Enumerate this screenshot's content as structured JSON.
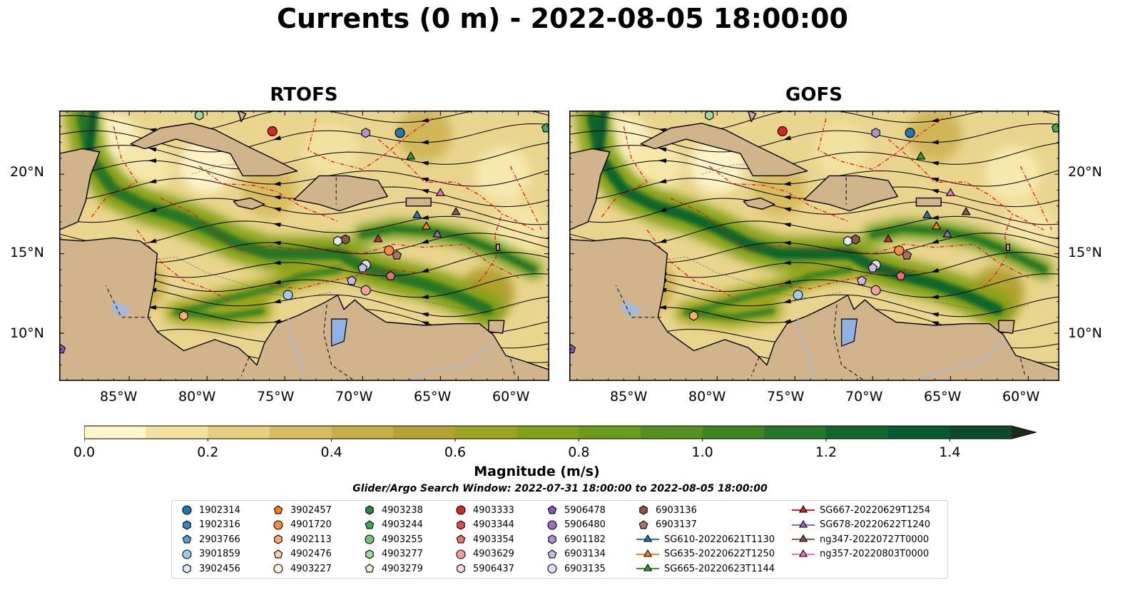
{
  "title": "Currents (0 m) - 2022-08-05 18:00:00",
  "panels": [
    {
      "name": "RTOFS"
    },
    {
      "name": "GOFS"
    }
  ],
  "lat_ticks": [
    "20°N",
    "15°N",
    "10°N"
  ],
  "lon_ticks": [
    "85°W",
    "80°W",
    "75°W",
    "70°W",
    "65°W",
    "60°W"
  ],
  "map_extent": {
    "lon": [
      -89.5,
      -58
    ],
    "lat": [
      7,
      24
    ]
  },
  "colorbar": {
    "label": "Magnitude (m/s)",
    "ticks": [
      "0.0",
      "0.2",
      "0.4",
      "0.6",
      "0.8",
      "1.0",
      "1.2",
      "1.4"
    ],
    "range": [
      0,
      1.5
    ],
    "extend": "max",
    "colors": [
      "#fdf6c9",
      "#f2e2a0",
      "#e6cf7f",
      "#d8bd60",
      "#c9ad47",
      "#b4a232",
      "#9ba51f",
      "#84a016",
      "#6c9a1a",
      "#55911f",
      "#3d8423",
      "#257627",
      "#11662c",
      "#0a5a30",
      "#0b4b2b",
      "#163a25",
      "#1a2b1c"
    ]
  },
  "search_window": "Glider/Argo Search Window: 2022-07-31 18:00:00 to 2022-08-05 18:00:00",
  "legend": [
    {
      "label": "1902314",
      "marker": "circle",
      "color": "#1f77b4"
    },
    {
      "label": "1902316",
      "marker": "hexagon",
      "color": "#3a87c4"
    },
    {
      "label": "2903766",
      "marker": "pentagon",
      "color": "#5aa0d8"
    },
    {
      "label": "3901859",
      "marker": "circle",
      "color": "#9ccbec"
    },
    {
      "label": "3902456",
      "marker": "hexagon",
      "color": "#dcebf8"
    },
    {
      "label": "3902457",
      "marker": "pentagon",
      "color": "#ff7f0e"
    },
    {
      "label": "4901720",
      "marker": "circle",
      "color": "#fd8d3c"
    },
    {
      "label": "4902113",
      "marker": "hexagon",
      "color": "#fdae6b"
    },
    {
      "label": "4902476",
      "marker": "pentagon",
      "color": "#fdd0a2"
    },
    {
      "label": "4903227",
      "marker": "circle",
      "color": "#feeedb"
    },
    {
      "label": "4903238",
      "marker": "hexagon",
      "color": "#238b45"
    },
    {
      "label": "4903244",
      "marker": "pentagon",
      "color": "#41ab5d"
    },
    {
      "label": "4903255",
      "marker": "circle",
      "color": "#74c476"
    },
    {
      "label": "4903277",
      "marker": "hexagon",
      "color": "#a1d99b"
    },
    {
      "label": "4903279",
      "marker": "pentagon",
      "color": "#dff3d9"
    },
    {
      "label": "4903333",
      "marker": "circle",
      "color": "#d62728"
    },
    {
      "label": "4903344",
      "marker": "hexagon",
      "color": "#e34a4a"
    },
    {
      "label": "4903354",
      "marker": "pentagon",
      "color": "#ef6f6f"
    },
    {
      "label": "4903629",
      "marker": "circle",
      "color": "#f4a0a0"
    },
    {
      "label": "5906437",
      "marker": "hexagon",
      "color": "#fbdada"
    },
    {
      "label": "5906478",
      "marker": "pentagon",
      "color": "#8856b8"
    },
    {
      "label": "5906480",
      "marker": "circle",
      "color": "#9b6fc4"
    },
    {
      "label": "6901182",
      "marker": "hexagon",
      "color": "#b18fd6"
    },
    {
      "label": "6903134",
      "marker": "pentagon",
      "color": "#cdb6e8"
    },
    {
      "label": "6903135",
      "marker": "circle",
      "color": "#e6d9f4"
    },
    {
      "label": "6903136",
      "marker": "hexagon",
      "color": "#8c564b"
    },
    {
      "label": "6903137",
      "marker": "pentagon",
      "color": "#a9756a"
    },
    {
      "label": "SG610-20220621T1130",
      "marker": "triangle-line",
      "color": "#1f77b4"
    },
    {
      "label": "SG635-20220622T1250",
      "marker": "triangle-line",
      "color": "#ff7f0e"
    },
    {
      "label": "SG665-20220623T1144",
      "marker": "triangle-line",
      "color": "#2ca02c"
    },
    {
      "label": "SG667-20220629T1254",
      "marker": "triangle-line",
      "color": "#d62728"
    },
    {
      "label": "SG678-20220622T1240",
      "marker": "triangle-line",
      "color": "#9467bd"
    },
    {
      "label": "ng347-20220727T0000",
      "marker": "triangle-line",
      "color": "#8c564b"
    },
    {
      "label": "ng357-20220803T0000",
      "marker": "triangle-line",
      "color": "#e377c2"
    }
  ],
  "markers": [
    {
      "label": "1902314",
      "lon": -67.6,
      "lat": 22.6
    },
    {
      "label": "4903333",
      "lon": -75.8,
      "lat": 22.7
    },
    {
      "label": "6901182",
      "lon": -69.8,
      "lat": 22.6
    },
    {
      "label": "4903244",
      "lon": -58.2,
      "lat": 22.9
    },
    {
      "label": "4903277",
      "lon": -80.5,
      "lat": 23.7
    },
    {
      "label": "SG665-20220623T1144",
      "lon": -66.9,
      "lat": 21.1
    },
    {
      "label": "ng357-20220803T0000",
      "lon": -65.0,
      "lat": 18.8
    },
    {
      "label": "SG610-20220621T1130",
      "lon": -66.5,
      "lat": 17.4
    },
    {
      "label": "ng347-20220727T0000",
      "lon": -64.0,
      "lat": 17.6
    },
    {
      "label": "SG635-20220622T1250",
      "lon": -65.9,
      "lat": 16.7
    },
    {
      "label": "SG678-20220622T1240",
      "lon": -65.2,
      "lat": 16.2
    },
    {
      "label": "SG667-20220629T1254",
      "lon": -69.0,
      "lat": 15.9
    },
    {
      "label": "6903136",
      "lon": -71.1,
      "lat": 15.9
    },
    {
      "label": "3902456",
      "lon": -71.6,
      "lat": 15.8
    },
    {
      "label": "4901720",
      "lon": -68.3,
      "lat": 15.2
    },
    {
      "label": "6903137",
      "lon": -67.8,
      "lat": 14.9
    },
    {
      "label": "6903135",
      "lon": -69.8,
      "lat": 14.3
    },
    {
      "label": "6903134",
      "lon": -70.0,
      "lat": 14.1
    },
    {
      "label": "4903354",
      "lon": -68.2,
      "lat": 13.6
    },
    {
      "label": "6903134",
      "lon": -70.7,
      "lat": 13.3
    },
    {
      "label": "4903629",
      "lon": -69.8,
      "lat": 12.7
    },
    {
      "label": "3901859",
      "lon": -74.8,
      "lat": 12.4
    },
    {
      "label": "4902113",
      "lon": -81.5,
      "lat": 11.1
    },
    {
      "label": "5906478",
      "lon": -89.4,
      "lat": 9.0
    }
  ]
}
